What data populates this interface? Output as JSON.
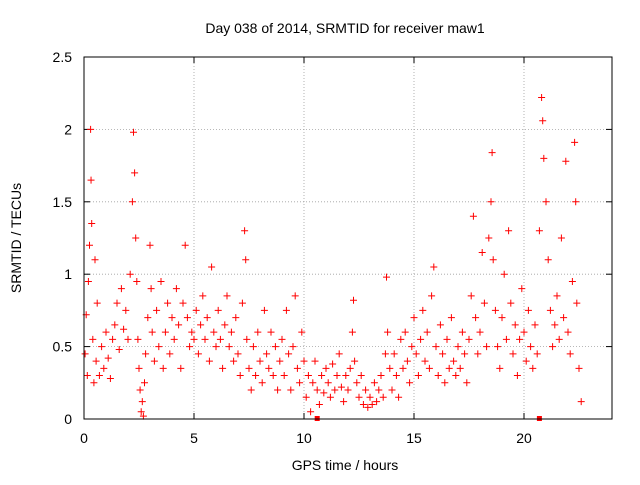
{
  "chart_data": {
    "type": "scatter",
    "title": "Day 038 of 2014, SRMTID for receiver maw1",
    "xlabel": "GPS time / hours",
    "ylabel": "SRMTID / TECUs",
    "xlim": [
      0,
      24
    ],
    "ylim": [
      0,
      2.5
    ],
    "x_ticks": [
      0,
      5,
      10,
      15,
      20
    ],
    "y_ticks": [
      0,
      0.5,
      1,
      1.5,
      2,
      2.5
    ],
    "x_tick_labels": [
      "0",
      "5",
      "10",
      "15",
      "20"
    ],
    "y_tick_labels": [
      "0",
      "0.5",
      "1",
      "1.5",
      "2",
      "2.5"
    ],
    "grid": true,
    "marker": "+",
    "color": "#ff0000",
    "series": [
      {
        "name": "SRMTID",
        "points": [
          [
            0.05,
            0.45
          ],
          [
            0.1,
            0.72
          ],
          [
            0.15,
            0.3
          ],
          [
            0.2,
            0.95
          ],
          [
            0.25,
            1.2
          ],
          [
            0.3,
            2.0
          ],
          [
            0.32,
            1.65
          ],
          [
            0.35,
            1.35
          ],
          [
            0.4,
            0.55
          ],
          [
            0.45,
            0.25
          ],
          [
            0.5,
            1.1
          ],
          [
            0.55,
            0.4
          ],
          [
            0.6,
            0.8
          ],
          [
            0.7,
            0.3
          ],
          [
            0.8,
            0.5
          ],
          [
            0.9,
            0.35
          ],
          [
            1.0,
            0.6
          ],
          [
            1.1,
            0.42
          ],
          [
            1.2,
            0.28
          ],
          [
            1.3,
            0.55
          ],
          [
            1.4,
            0.65
          ],
          [
            1.5,
            0.8
          ],
          [
            1.6,
            0.48
          ],
          [
            1.7,
            0.9
          ],
          [
            1.8,
            0.62
          ],
          [
            1.9,
            0.75
          ],
          [
            2.0,
            0.55
          ],
          [
            2.1,
            1.0
          ],
          [
            2.2,
            1.5
          ],
          [
            2.25,
            1.98
          ],
          [
            2.3,
            1.7
          ],
          [
            2.35,
            1.25
          ],
          [
            2.4,
            0.95
          ],
          [
            2.45,
            0.55
          ],
          [
            2.5,
            0.35
          ],
          [
            2.55,
            0.2
          ],
          [
            2.6,
            0.05
          ],
          [
            2.65,
            0.12
          ],
          [
            2.7,
            0.02
          ],
          [
            2.75,
            0.25
          ],
          [
            2.8,
            0.45
          ],
          [
            2.9,
            0.7
          ],
          [
            3.0,
            1.2
          ],
          [
            3.05,
            0.9
          ],
          [
            3.1,
            0.6
          ],
          [
            3.2,
            0.4
          ],
          [
            3.3,
            0.75
          ],
          [
            3.4,
            0.5
          ],
          [
            3.5,
            0.95
          ],
          [
            3.6,
            0.35
          ],
          [
            3.7,
            0.6
          ],
          [
            3.8,
            0.8
          ],
          [
            3.9,
            0.45
          ],
          [
            4.0,
            0.7
          ],
          [
            4.1,
            0.55
          ],
          [
            4.2,
            0.9
          ],
          [
            4.3,
            0.65
          ],
          [
            4.4,
            0.35
          ],
          [
            4.5,
            0.8
          ],
          [
            4.6,
            1.2
          ],
          [
            4.7,
            0.7
          ],
          [
            4.8,
            0.5
          ],
          [
            4.9,
            0.6
          ],
          [
            5.0,
            0.55
          ],
          [
            5.1,
            0.75
          ],
          [
            5.2,
            0.45
          ],
          [
            5.3,
            0.65
          ],
          [
            5.4,
            0.85
          ],
          [
            5.5,
            0.55
          ],
          [
            5.6,
            0.7
          ],
          [
            5.7,
            0.4
          ],
          [
            5.8,
            1.05
          ],
          [
            5.9,
            0.6
          ],
          [
            6.0,
            0.5
          ],
          [
            6.1,
            0.75
          ],
          [
            6.2,
            0.55
          ],
          [
            6.3,
            0.35
          ],
          [
            6.4,
            0.65
          ],
          [
            6.5,
            0.85
          ],
          [
            6.6,
            0.5
          ],
          [
            6.7,
            0.6
          ],
          [
            6.8,
            0.4
          ],
          [
            6.9,
            0.7
          ],
          [
            7.0,
            0.45
          ],
          [
            7.1,
            0.3
          ],
          [
            7.2,
            0.8
          ],
          [
            7.3,
            1.3
          ],
          [
            7.35,
            1.1
          ],
          [
            7.4,
            0.55
          ],
          [
            7.5,
            0.35
          ],
          [
            7.6,
            0.2
          ],
          [
            7.7,
            0.5
          ],
          [
            7.8,
            0.3
          ],
          [
            7.9,
            0.6
          ],
          [
            8.0,
            0.4
          ],
          [
            8.1,
            0.25
          ],
          [
            8.2,
            0.75
          ],
          [
            8.3,
            0.45
          ],
          [
            8.4,
            0.35
          ],
          [
            8.5,
            0.6
          ],
          [
            8.6,
            0.3
          ],
          [
            8.7,
            0.5
          ],
          [
            8.8,
            0.2
          ],
          [
            8.9,
            0.4
          ],
          [
            9.0,
            0.55
          ],
          [
            9.1,
            0.3
          ],
          [
            9.2,
            0.75
          ],
          [
            9.3,
            0.45
          ],
          [
            9.4,
            0.2
          ],
          [
            9.5,
            0.5
          ],
          [
            9.6,
            0.85
          ],
          [
            9.7,
            0.35
          ],
          [
            9.8,
            0.25
          ],
          [
            9.9,
            0.6
          ],
          [
            10.0,
            0.4
          ],
          [
            10.1,
            0.15
          ],
          [
            10.2,
            0.3
          ],
          [
            10.3,
            0.05
          ],
          [
            10.4,
            0.25
          ],
          [
            10.5,
            0.4
          ],
          [
            10.6,
            0.2
          ],
          [
            10.7,
            0.1
          ],
          [
            10.8,
            0.3
          ],
          [
            10.9,
            0.18
          ],
          [
            11.0,
            0.35
          ],
          [
            11.1,
            0.25
          ],
          [
            11.2,
            0.15
          ],
          [
            11.3,
            0.38
          ],
          [
            11.4,
            0.2
          ],
          [
            11.5,
            0.3
          ],
          [
            11.6,
            0.45
          ],
          [
            11.7,
            0.22
          ],
          [
            11.8,
            0.12
          ],
          [
            11.9,
            0.3
          ],
          [
            12.0,
            0.2
          ],
          [
            12.1,
            0.35
          ],
          [
            12.2,
            0.6
          ],
          [
            12.25,
            0.82
          ],
          [
            12.3,
            0.4
          ],
          [
            12.4,
            0.25
          ],
          [
            12.5,
            0.15
          ],
          [
            12.6,
            0.3
          ],
          [
            12.7,
            0.1
          ],
          [
            12.8,
            0.2
          ],
          [
            12.9,
            0.08
          ],
          [
            13.0,
            0.15
          ],
          [
            13.1,
            0.1
          ],
          [
            13.2,
            0.25
          ],
          [
            13.3,
            0.12
          ],
          [
            13.4,
            0.2
          ],
          [
            13.5,
            0.3
          ],
          [
            13.6,
            0.15
          ],
          [
            13.7,
            0.45
          ],
          [
            13.75,
            0.98
          ],
          [
            13.8,
            0.6
          ],
          [
            13.9,
            0.35
          ],
          [
            14.0,
            0.2
          ],
          [
            14.1,
            0.45
          ],
          [
            14.2,
            0.3
          ],
          [
            14.3,
            0.15
          ],
          [
            14.4,
            0.55
          ],
          [
            14.5,
            0.35
          ],
          [
            14.6,
            0.6
          ],
          [
            14.7,
            0.4
          ],
          [
            14.8,
            0.25
          ],
          [
            14.9,
            0.5
          ],
          [
            15.0,
            0.7
          ],
          [
            15.1,
            0.45
          ],
          [
            15.2,
            0.3
          ],
          [
            15.3,
            0.55
          ],
          [
            15.4,
            0.75
          ],
          [
            15.5,
            0.4
          ],
          [
            15.6,
            0.6
          ],
          [
            15.7,
            0.35
          ],
          [
            15.8,
            0.85
          ],
          [
            15.9,
            1.05
          ],
          [
            16.0,
            0.5
          ],
          [
            16.1,
            0.3
          ],
          [
            16.2,
            0.65
          ],
          [
            16.3,
            0.45
          ],
          [
            16.4,
            0.25
          ],
          [
            16.5,
            0.55
          ],
          [
            16.6,
            0.35
          ],
          [
            16.7,
            0.7
          ],
          [
            16.8,
            0.4
          ],
          [
            16.9,
            0.3
          ],
          [
            17.0,
            0.5
          ],
          [
            17.1,
            0.35
          ],
          [
            17.2,
            0.6
          ],
          [
            17.3,
            0.45
          ],
          [
            17.4,
            0.25
          ],
          [
            17.5,
            0.55
          ],
          [
            17.6,
            0.85
          ],
          [
            17.7,
            1.4
          ],
          [
            17.8,
            0.7
          ],
          [
            17.9,
            0.45
          ],
          [
            18.0,
            0.6
          ],
          [
            18.1,
            1.15
          ],
          [
            18.2,
            0.8
          ],
          [
            18.3,
            0.5
          ],
          [
            18.4,
            1.25
          ],
          [
            18.5,
            1.5
          ],
          [
            18.55,
            1.84
          ],
          [
            18.6,
            1.1
          ],
          [
            18.7,
            0.75
          ],
          [
            18.8,
            0.5
          ],
          [
            18.9,
            0.35
          ],
          [
            19.0,
            0.7
          ],
          [
            19.1,
            1.0
          ],
          [
            19.2,
            0.55
          ],
          [
            19.3,
            1.3
          ],
          [
            19.4,
            0.8
          ],
          [
            19.5,
            0.45
          ],
          [
            19.6,
            0.65
          ],
          [
            19.7,
            0.3
          ],
          [
            19.8,
            0.55
          ],
          [
            19.9,
            0.9
          ],
          [
            20.0,
            0.6
          ],
          [
            20.1,
            0.4
          ],
          [
            20.2,
            0.75
          ],
          [
            20.3,
            0.5
          ],
          [
            20.4,
            0.35
          ],
          [
            20.5,
            0.65
          ],
          [
            20.6,
            0.45
          ],
          [
            20.7,
            1.3
          ],
          [
            20.8,
            2.22
          ],
          [
            20.85,
            2.06
          ],
          [
            20.9,
            1.8
          ],
          [
            21.0,
            1.5
          ],
          [
            21.1,
            1.1
          ],
          [
            21.2,
            0.75
          ],
          [
            21.3,
            0.5
          ],
          [
            21.4,
            0.65
          ],
          [
            21.5,
            0.85
          ],
          [
            21.6,
            0.55
          ],
          [
            21.7,
            1.25
          ],
          [
            21.8,
            0.7
          ],
          [
            21.9,
            1.78
          ],
          [
            22.0,
            0.6
          ],
          [
            22.1,
            0.45
          ],
          [
            22.2,
            0.95
          ],
          [
            22.3,
            1.91
          ],
          [
            22.35,
            1.5
          ],
          [
            22.4,
            0.8
          ],
          [
            22.5,
            0.35
          ],
          [
            22.6,
            0.12
          ]
        ]
      }
    ],
    "x_axis_markers": [
      10.6,
      20.7
    ]
  }
}
